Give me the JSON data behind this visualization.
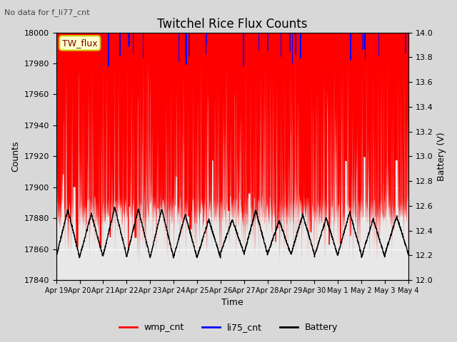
{
  "title": "Twitchel Rice Flux Counts",
  "no_data_label": "No data for f_li77_cnt",
  "tw_flux_label": "TW_flux",
  "xlabel": "Time",
  "ylabel_left": "Counts",
  "ylabel_right": "Battery (V)",
  "ylim_left": [
    17840,
    18000
  ],
  "ylim_right": [
    12.0,
    14.0
  ],
  "yticks_left": [
    17840,
    17860,
    17880,
    17900,
    17920,
    17940,
    17960,
    17980,
    18000
  ],
  "yticks_right": [
    12.0,
    12.2,
    12.4,
    12.6,
    12.8,
    13.0,
    13.2,
    13.4,
    13.6,
    13.8,
    14.0
  ],
  "xtick_labels": [
    "Apr 19",
    "Apr 20",
    "Apr 21",
    "Apr 22",
    "Apr 23",
    "Apr 24",
    "Apr 25",
    "Apr 26",
    "Apr 27",
    "Apr 28",
    "Apr 29",
    "Apr 30",
    "May 1",
    "May 2",
    "May 3",
    "May 4"
  ],
  "bg_color": "#d8d8d8",
  "plot_bg_color": "#e8e8e8",
  "wmp_color": "#ff0000",
  "li75_color": "#0000ff",
  "battery_color": "#000000",
  "legend_entries": [
    "wmp_cnt",
    "li75_cnt",
    "Battery"
  ],
  "legend_colors": [
    "#ff0000",
    "#0000ff",
    "#000000"
  ]
}
